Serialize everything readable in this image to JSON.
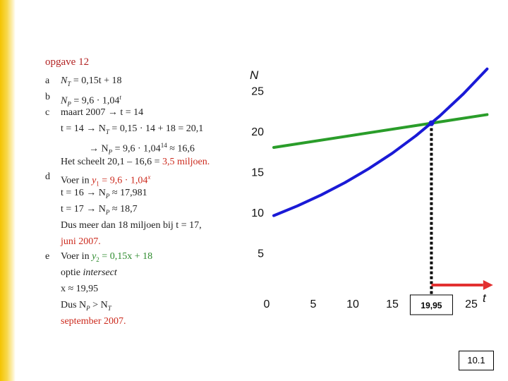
{
  "title": "opgave 12",
  "answers": {
    "a_label": "a",
    "a_lhs": "N",
    "a_lhs_sub": "T",
    "a_rhs": " = 0,15t + 18",
    "b_label": "b",
    "b_lhs": "N",
    "b_lhs_sub": "P",
    "b_rhs": " = 9,6 · 1,04",
    "b_rhs_sup": "t",
    "c_label": "c",
    "c_line1": "maart 2007 → t = 14",
    "c_line2_a": "t = 14 → N",
    "c_line2_sub": "T",
    "c_line2_b": " = 0,15 · 14 + 18 = 20,1",
    "c_line3_a": "→ N",
    "c_line3_sub": "P",
    "c_line3_b": " = 9,6 · 1,04",
    "c_line3_sup": "14",
    "c_line3_c": " ≈ 16,6",
    "c_line4_a": "Het scheelt 20,1 – 16,6 = ",
    "c_line4_b": "3,5 miljoen.",
    "d_label": "d",
    "d_line1_a": "Voer in ",
    "d_line1_b": "y",
    "d_line1_sub": "1",
    "d_line1_c": " = 9,6 · 1,04",
    "d_line1_sup": "x",
    "d_line2_a": "t = 16 → N",
    "d_line2_sub": "P",
    "d_line2_b": " ≈ 17,981",
    "d_line3_a": "t = 17 → N",
    "d_line3_sub": "P",
    "d_line3_b": " ≈ 18,7",
    "d_line4": "Dus meer dan 18 miljoen bij t = 17,",
    "d_line5": "juni 2007.",
    "e_label": "e",
    "e_line1_a": "Voer in ",
    "e_line1_b": "y",
    "e_line1_sub": "2",
    "e_line1_c": " = 0,15x + 18",
    "e_line2_a": "optie ",
    "e_line2_b": "intersect",
    "e_line3": "x ≈ 19,95",
    "e_line4_a": "Dus  N",
    "e_line4_sub1": "P",
    "e_line4_b": " > N",
    "e_line4_sub2": "T",
    "e_line5": "september 2007."
  },
  "chart_data": {
    "type": "line",
    "ylabel": "N",
    "xlabel": "t",
    "xlim": [
      0,
      27
    ],
    "ylim": [
      0,
      27
    ],
    "x_ticks": [
      "0",
      "5",
      "10",
      "15",
      "25"
    ],
    "y_ticks": [
      "5",
      "10",
      "15",
      "20",
      "25"
    ],
    "intersection_label": "19,95",
    "series": [
      {
        "x": [
          0,
          27
        ],
        "y": [
          18,
          22.05
        ],
        "color": "#2a9d2a"
      },
      {
        "x": [
          0,
          3,
          6,
          9,
          12,
          15,
          18,
          21,
          24,
          27
        ],
        "y": [
          9.6,
          10.8,
          12.15,
          13.66,
          15.37,
          17.29,
          19.45,
          21.88,
          24.61,
          27.68
        ],
        "color": "#1a1ad6"
      }
    ],
    "colors": {
      "green": "#2a9d2a",
      "blue": "#1a1ad6",
      "arrow": "#e23030"
    }
  },
  "badge": "10.1"
}
